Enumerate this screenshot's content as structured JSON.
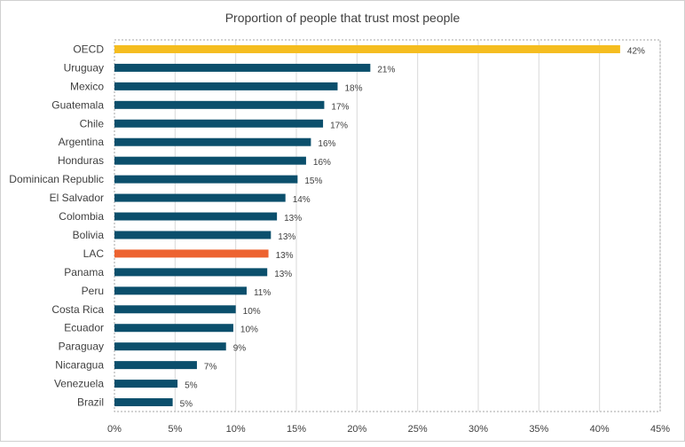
{
  "chart_data": {
    "type": "bar",
    "orientation": "horizontal",
    "title": "Proportion of people that trust most people",
    "xlabel": "",
    "ylabel": "",
    "xlim": [
      0,
      45
    ],
    "x_ticks": [
      0,
      5,
      10,
      15,
      20,
      25,
      30,
      35,
      40,
      45
    ],
    "x_tick_labels": [
      "0%",
      "5%",
      "10%",
      "15%",
      "20%",
      "25%",
      "30%",
      "35%",
      "40%",
      "45%"
    ],
    "grid": "vertical",
    "categories": [
      "OECD",
      "Uruguay",
      "Mexico",
      "Guatemala",
      "Chile",
      "Argentina",
      "Honduras",
      "Dominican Republic",
      "El Salvador",
      "Colombia",
      "Bolivia",
      "LAC",
      "Panama",
      "Peru",
      "Costa Rica",
      "Ecuador",
      "Paraguay",
      "Nicaragua",
      "Venezuela",
      "Brazil"
    ],
    "values": [
      41.7,
      21.1,
      18.4,
      17.3,
      17.2,
      16.2,
      15.8,
      15.1,
      14.1,
      13.4,
      12.9,
      12.7,
      12.6,
      10.9,
      10.0,
      9.8,
      9.2,
      6.8,
      5.2,
      4.8
    ],
    "data_labels": [
      "42%",
      "21%",
      "18%",
      "17%",
      "17%",
      "16%",
      "16%",
      "15%",
      "14%",
      "13%",
      "13%",
      "13%",
      "13%",
      "11%",
      "10%",
      "10%",
      "9%",
      "7%",
      "5%",
      "5%"
    ],
    "colors": {
      "default": "#0b4f6c",
      "OECD": "#f5bd1f",
      "LAC": "#ed6331",
      "grid": "#d9d9d9",
      "text": "#404040"
    }
  }
}
